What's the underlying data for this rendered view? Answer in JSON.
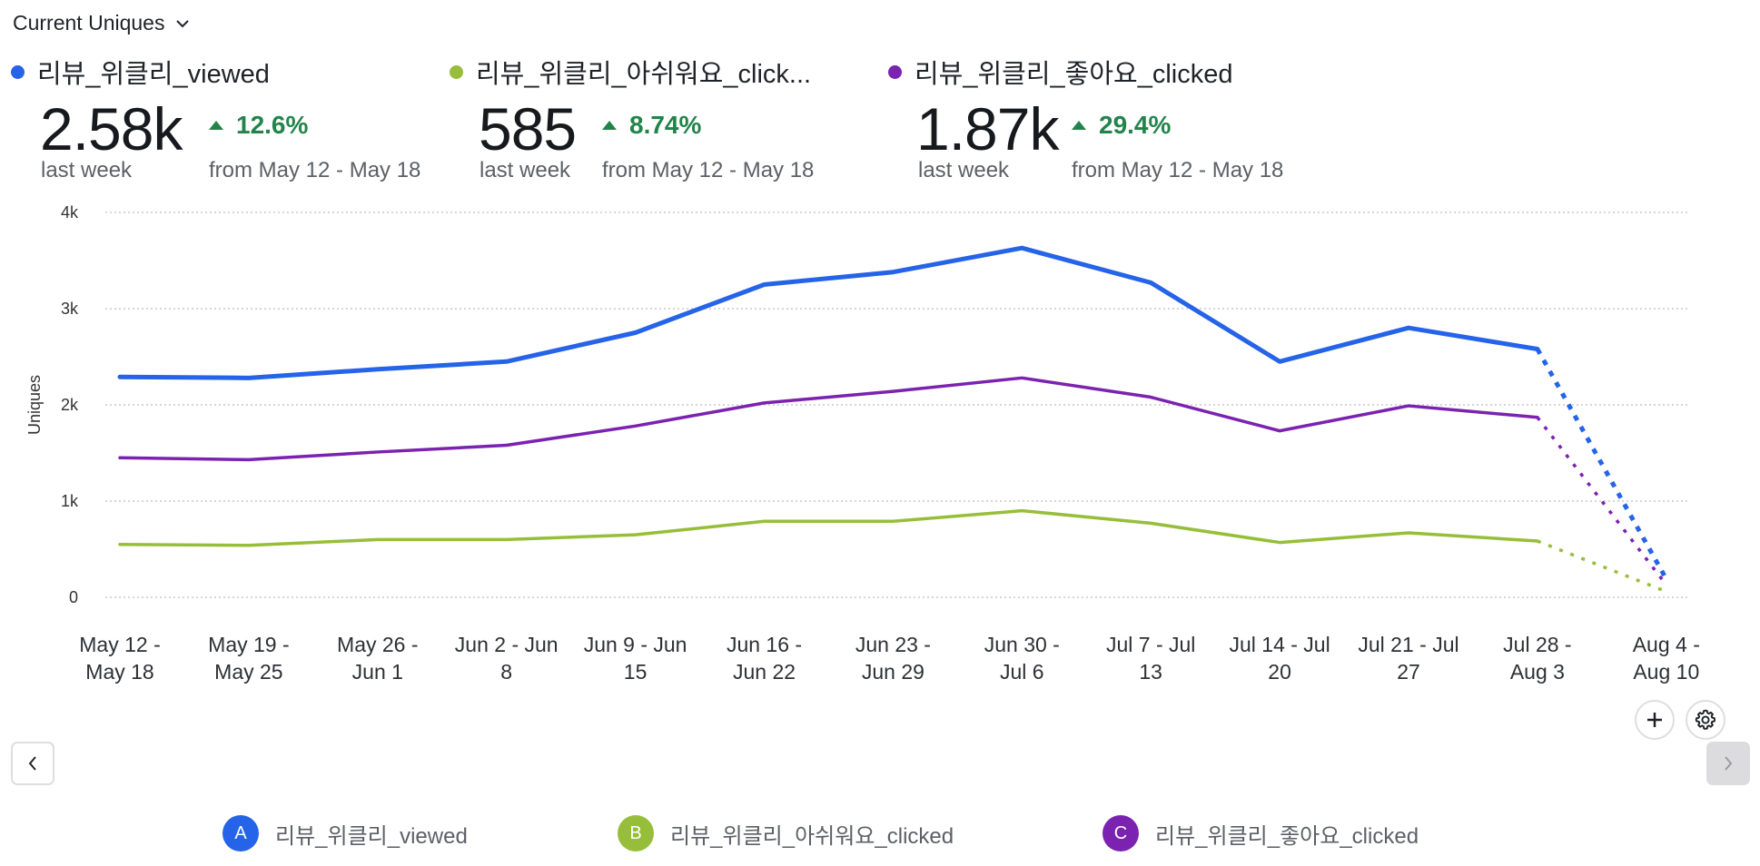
{
  "header": {
    "title": "Current Uniques"
  },
  "summary": [
    {
      "name": "리뷰_위클리_viewed",
      "color": "#2563e8",
      "value": "2.58k",
      "period": "last week",
      "delta": "12.6%",
      "compare": "from May 12 - May 18"
    },
    {
      "name": "리뷰_위클리_아쉬워요_click...",
      "color": "#97be3a",
      "value": "585",
      "period": "last week",
      "delta": "8.74%",
      "compare": "from May 12 - May 18"
    },
    {
      "name": "리뷰_위클리_좋아요_clicked",
      "color": "#7b22b0",
      "value": "1.87k",
      "period": "last week",
      "delta": "29.4%",
      "compare": "from May 12 - May 18"
    }
  ],
  "legend": [
    {
      "badge": "A",
      "label": "리뷰_위클리_viewed",
      "color": "#2563e8"
    },
    {
      "badge": "B",
      "label": "리뷰_위클리_아쉬워요_clicked",
      "color": "#97be3a"
    },
    {
      "badge": "C",
      "label": "리뷰_위클리_좋아요_clicked",
      "color": "#7b22b0"
    }
  ],
  "controls": {
    "add_icon": "plus-icon",
    "settings_icon": "gear-icon",
    "prev_icon": "chevron-left-icon",
    "next_icon": "chevron-right-icon"
  },
  "chart_data": {
    "type": "line",
    "title": "Current Uniques",
    "xlabel": "",
    "ylabel": "Uniques",
    "ylim": [
      0,
      4000
    ],
    "yticks": [
      0,
      1000,
      2000,
      3000,
      4000
    ],
    "ytick_labels": [
      "0",
      "1k",
      "2k",
      "3k",
      "4k"
    ],
    "grid": true,
    "legend_position": "bottom",
    "categories": [
      [
        "May 12 -",
        "May 18"
      ],
      [
        "May 19 -",
        "May 25"
      ],
      [
        "May 26 -",
        "Jun 1"
      ],
      [
        "Jun 2 - Jun",
        "8"
      ],
      [
        "Jun 9 - Jun",
        "15"
      ],
      [
        "Jun 16 -",
        "Jun 22"
      ],
      [
        "Jun 23 -",
        "Jun 29"
      ],
      [
        "Jun 30 -",
        "Jul 6"
      ],
      [
        "Jul 7 - Jul",
        "13"
      ],
      [
        "Jul 14 - Jul",
        "20"
      ],
      [
        "Jul 21 - Jul",
        "27"
      ],
      [
        "Jul 28 -",
        "Aug 3"
      ],
      [
        "Aug 4 -",
        "Aug 10"
      ]
    ],
    "incomplete_from_index": 11,
    "series": [
      {
        "name": "리뷰_위클리_viewed",
        "color": "#2563e8",
        "values": [
          2290,
          2280,
          2370,
          2450,
          2750,
          3250,
          3380,
          3630,
          3270,
          2450,
          2800,
          2580,
          190
        ]
      },
      {
        "name": "리뷰_위클리_좋아요_clicked",
        "color": "#7b22b0",
        "values": [
          1450,
          1430,
          1510,
          1580,
          1780,
          2020,
          2140,
          2280,
          2080,
          1730,
          1990,
          1870,
          130
        ]
      },
      {
        "name": "리뷰_위클리_아쉬워요_clicked",
        "color": "#97be3a",
        "values": [
          550,
          540,
          600,
          600,
          650,
          790,
          790,
          900,
          770,
          570,
          670,
          585,
          60
        ]
      }
    ]
  }
}
